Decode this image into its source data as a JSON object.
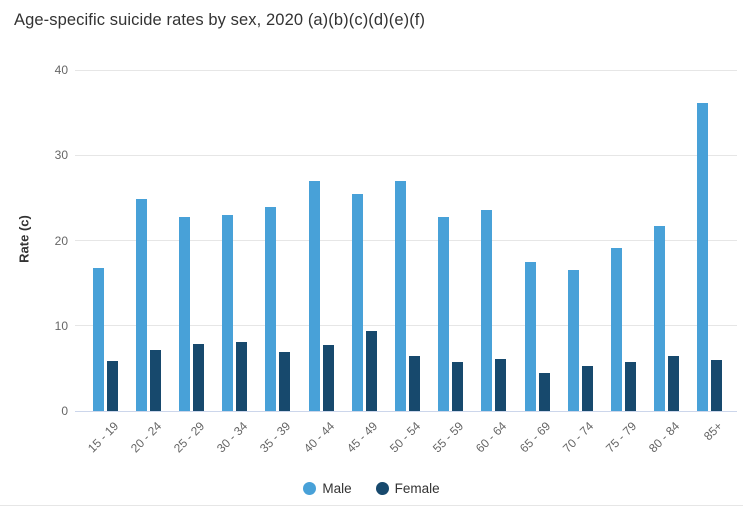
{
  "title": "Age-specific suicide rates by sex, 2020 (a)(b)(c)(d)(e)(f)",
  "legend": {
    "male_label": "Male",
    "female_label": "Female"
  },
  "colors": {
    "male": "#48a1d8",
    "female": "#17496d",
    "grid": "#e6e6e6",
    "axis_line": "#ccd6eb",
    "tick_text": "#666666",
    "title_text": "#333333"
  },
  "chart_data": {
    "type": "bar",
    "title": "Age-specific suicide rates by sex, 2020 (a)(b)(c)(d)(e)(f)",
    "xlabel": "",
    "ylabel": "Rate (c)",
    "ylim": [
      0,
      40
    ],
    "yticks": [
      0,
      10,
      20,
      30,
      40
    ],
    "grid": true,
    "legend_position": "bottom",
    "categories": [
      "15 - 19",
      "20 - 24",
      "25 - 29",
      "30 - 34",
      "35 - 39",
      "40 - 44",
      "45 - 49",
      "50 - 54",
      "55 - 59",
      "60 - 64",
      "65 - 69",
      "70 - 74",
      "75 - 79",
      "80 - 84",
      "85+"
    ],
    "series": [
      {
        "name": "Male",
        "color": "#48a1d8",
        "values": [
          16.8,
          24.9,
          22.8,
          23.0,
          23.9,
          27.0,
          25.5,
          27.0,
          22.8,
          23.6,
          17.5,
          16.5,
          19.1,
          21.7,
          36.1
        ]
      },
      {
        "name": "Female",
        "color": "#17496d",
        "values": [
          5.9,
          7.2,
          7.9,
          8.1,
          6.9,
          7.7,
          9.4,
          6.5,
          5.8,
          6.1,
          4.4,
          5.3,
          5.8,
          6.4,
          6.0
        ]
      }
    ]
  }
}
